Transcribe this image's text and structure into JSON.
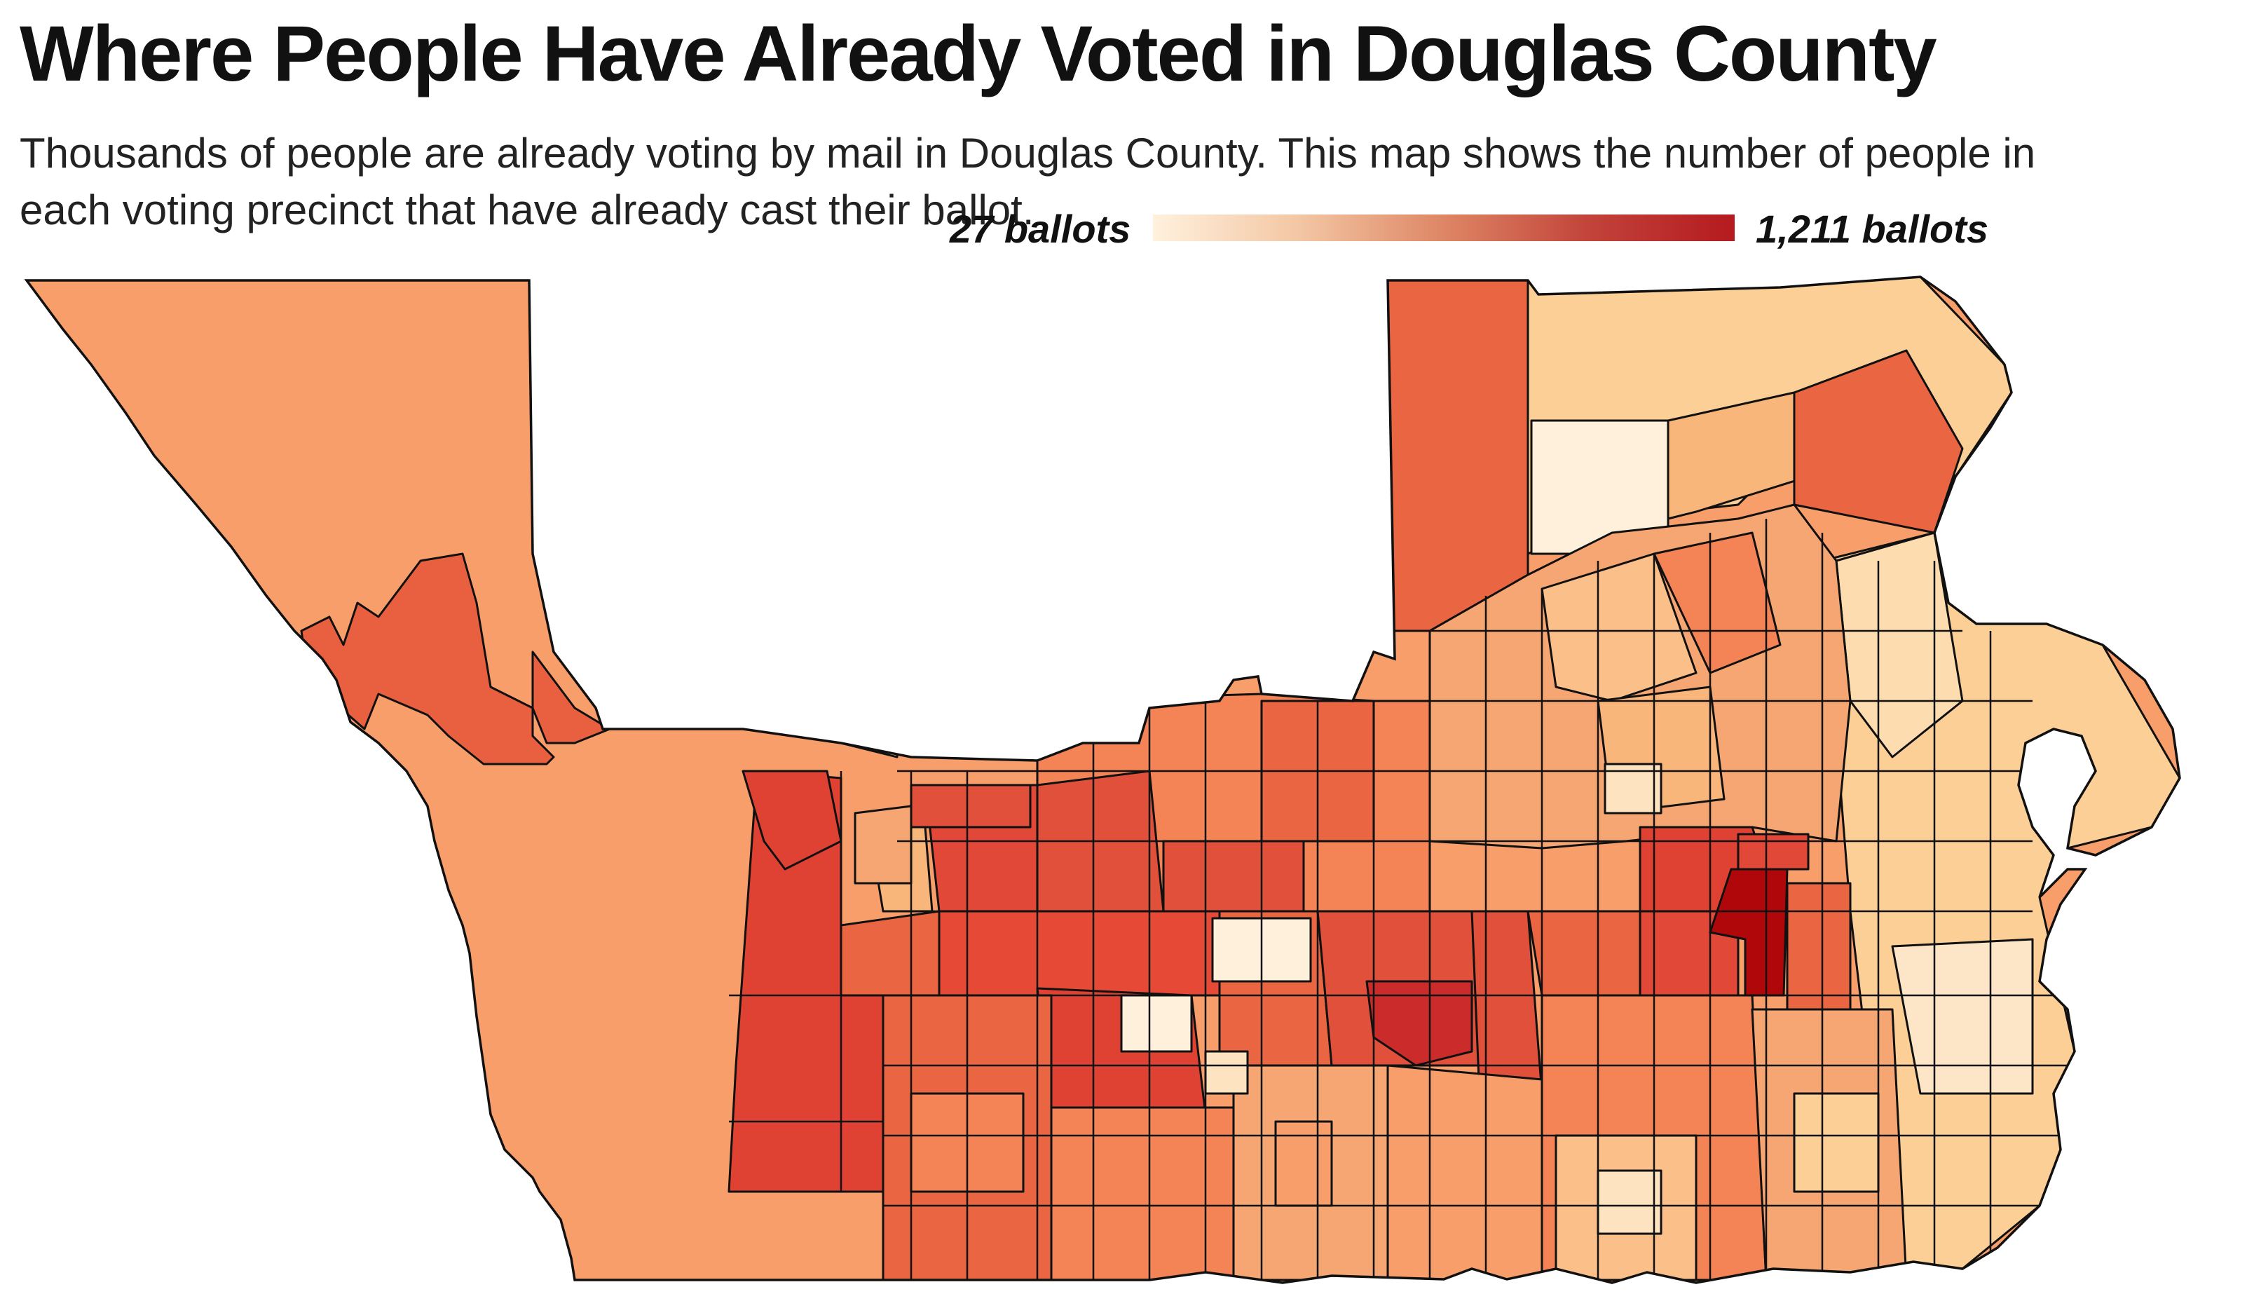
{
  "title": "Where People Have Already Voted in Douglas County",
  "subtitle": "Thousands of people are already voting by mail in Douglas County. This map shows the number of people in each voting precinct that have already cast their ballot.",
  "legend": {
    "min_label": "27 ballots",
    "max_label": "1,211 ballots",
    "min_value": 27,
    "max_value": 1211,
    "colors": [
      "#fff1dd",
      "#f3c7a4",
      "#de8665",
      "#c2433a",
      "#b51a1f"
    ]
  },
  "map": {
    "outline_color": "#111111",
    "regions": [
      {
        "id": "west-rural",
        "color": "#f79e6b"
      },
      {
        "id": "northwest-strip",
        "color": "#e8603f"
      },
      {
        "id": "north-central-rural",
        "color": "#fde3c0"
      },
      {
        "id": "north-upper",
        "color": "#f48456"
      },
      {
        "id": "north-east-tall",
        "color": "#ea6643"
      },
      {
        "id": "northeast",
        "color": "#fbcf96"
      },
      {
        "id": "east-lobe",
        "color": "#fbcf96"
      },
      {
        "id": "dense-red-north",
        "color": "#c7272a"
      },
      {
        "id": "darkest-precinct",
        "color": "#b0080a"
      },
      {
        "id": "southwest-red",
        "color": "#df4232"
      },
      {
        "id": "lightest-precinct",
        "color": "#fff0dc"
      }
    ]
  }
}
